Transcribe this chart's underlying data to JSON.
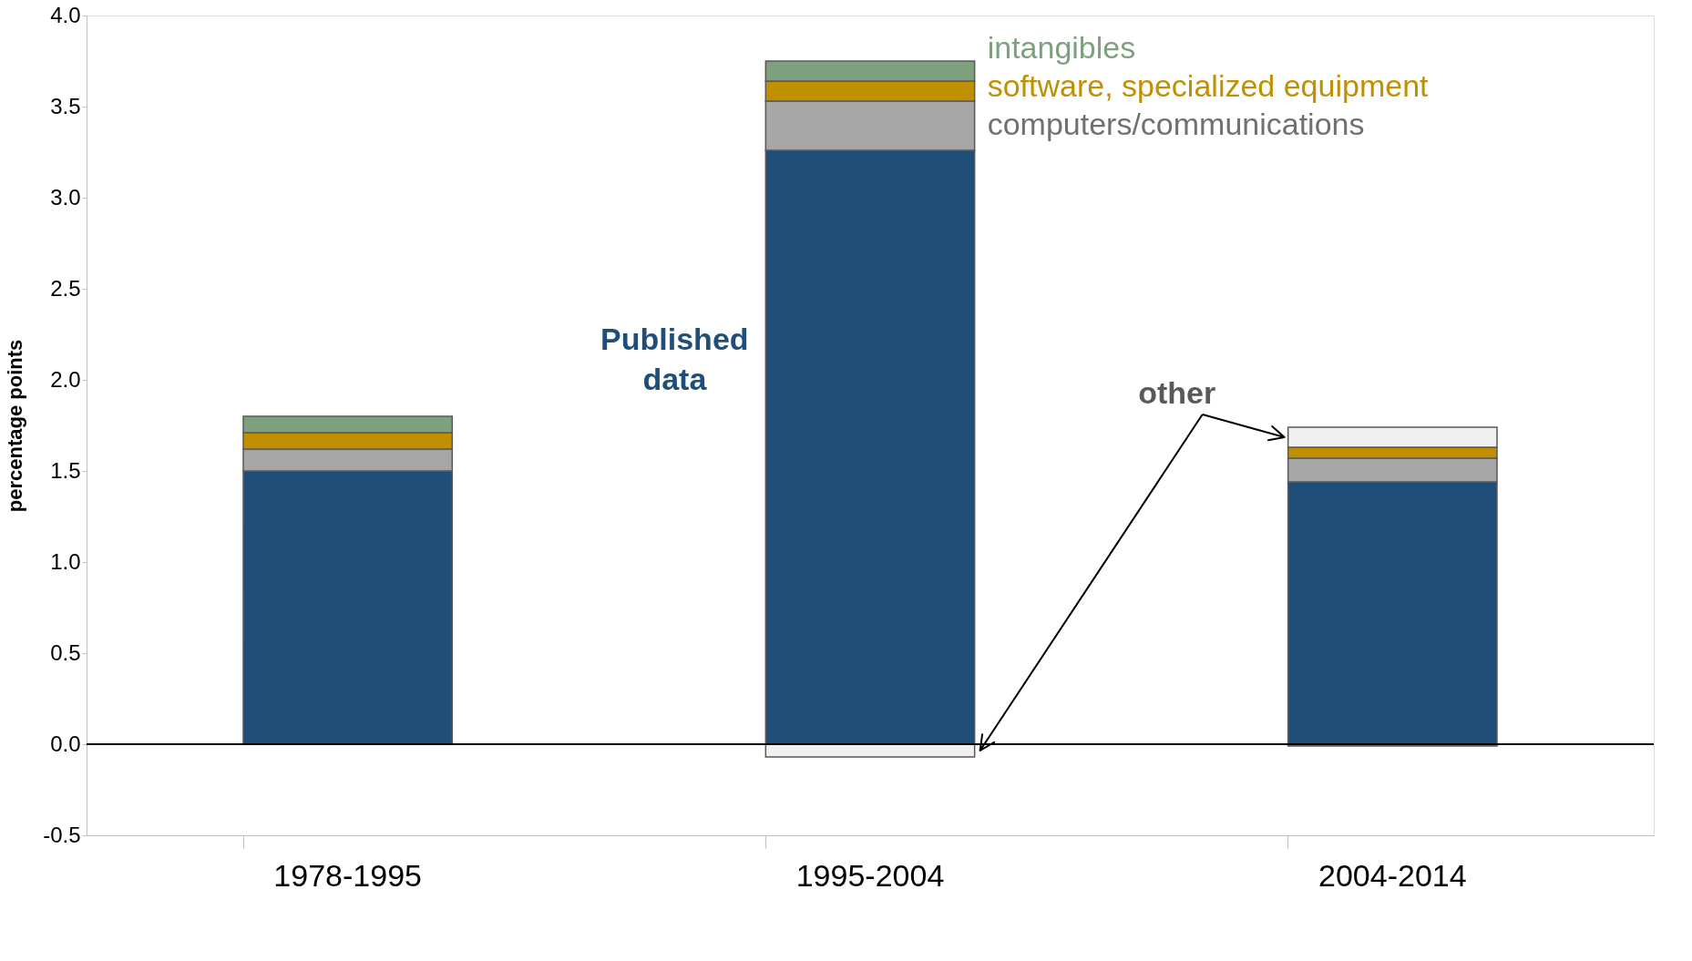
{
  "chart_data": {
    "type": "bar",
    "stacked": true,
    "ylabel": "percentage points",
    "categories": [
      "1978-1995",
      "1995-2004",
      "2004-2014"
    ],
    "series": [
      {
        "name": "Published data",
        "color": "#1f4e79",
        "values": [
          1.5,
          3.26,
          1.44
        ]
      },
      {
        "name": "computers/communications",
        "color": "#a6a6a6",
        "values": [
          0.12,
          0.27,
          0.13
        ]
      },
      {
        "name": "software, specialized equipment",
        "color": "#c09000",
        "values": [
          0.09,
          0.11,
          0.06
        ]
      },
      {
        "name": "intangibles",
        "color": "#7fa07f",
        "values": [
          0.09,
          0.11,
          -0.01
        ]
      },
      {
        "name": "other",
        "color": "#f0f0f0",
        "values": [
          null,
          -0.07,
          0.11
        ]
      }
    ],
    "ylim": [
      -0.5,
      4.0
    ],
    "yticks": [
      {
        "value": -0.5,
        "label": "-0.5"
      },
      {
        "value": 0,
        "label": "0.0"
      },
      {
        "value": 0.5,
        "label": "0.5"
      },
      {
        "value": 1,
        "label": "1.0"
      },
      {
        "value": 1.5,
        "label": "1.5"
      },
      {
        "value": 2,
        "label": "2.0"
      },
      {
        "value": 2.5,
        "label": "2.5"
      },
      {
        "value": 3,
        "label": "3.0"
      },
      {
        "value": 3.5,
        "label": "3.5"
      },
      {
        "value": 4,
        "label": "4.0"
      }
    ],
    "ref_lines": [
      {
        "axis": "y",
        "value": 0,
        "color": "#000000"
      }
    ],
    "grid": false,
    "legend": false
  }
}
